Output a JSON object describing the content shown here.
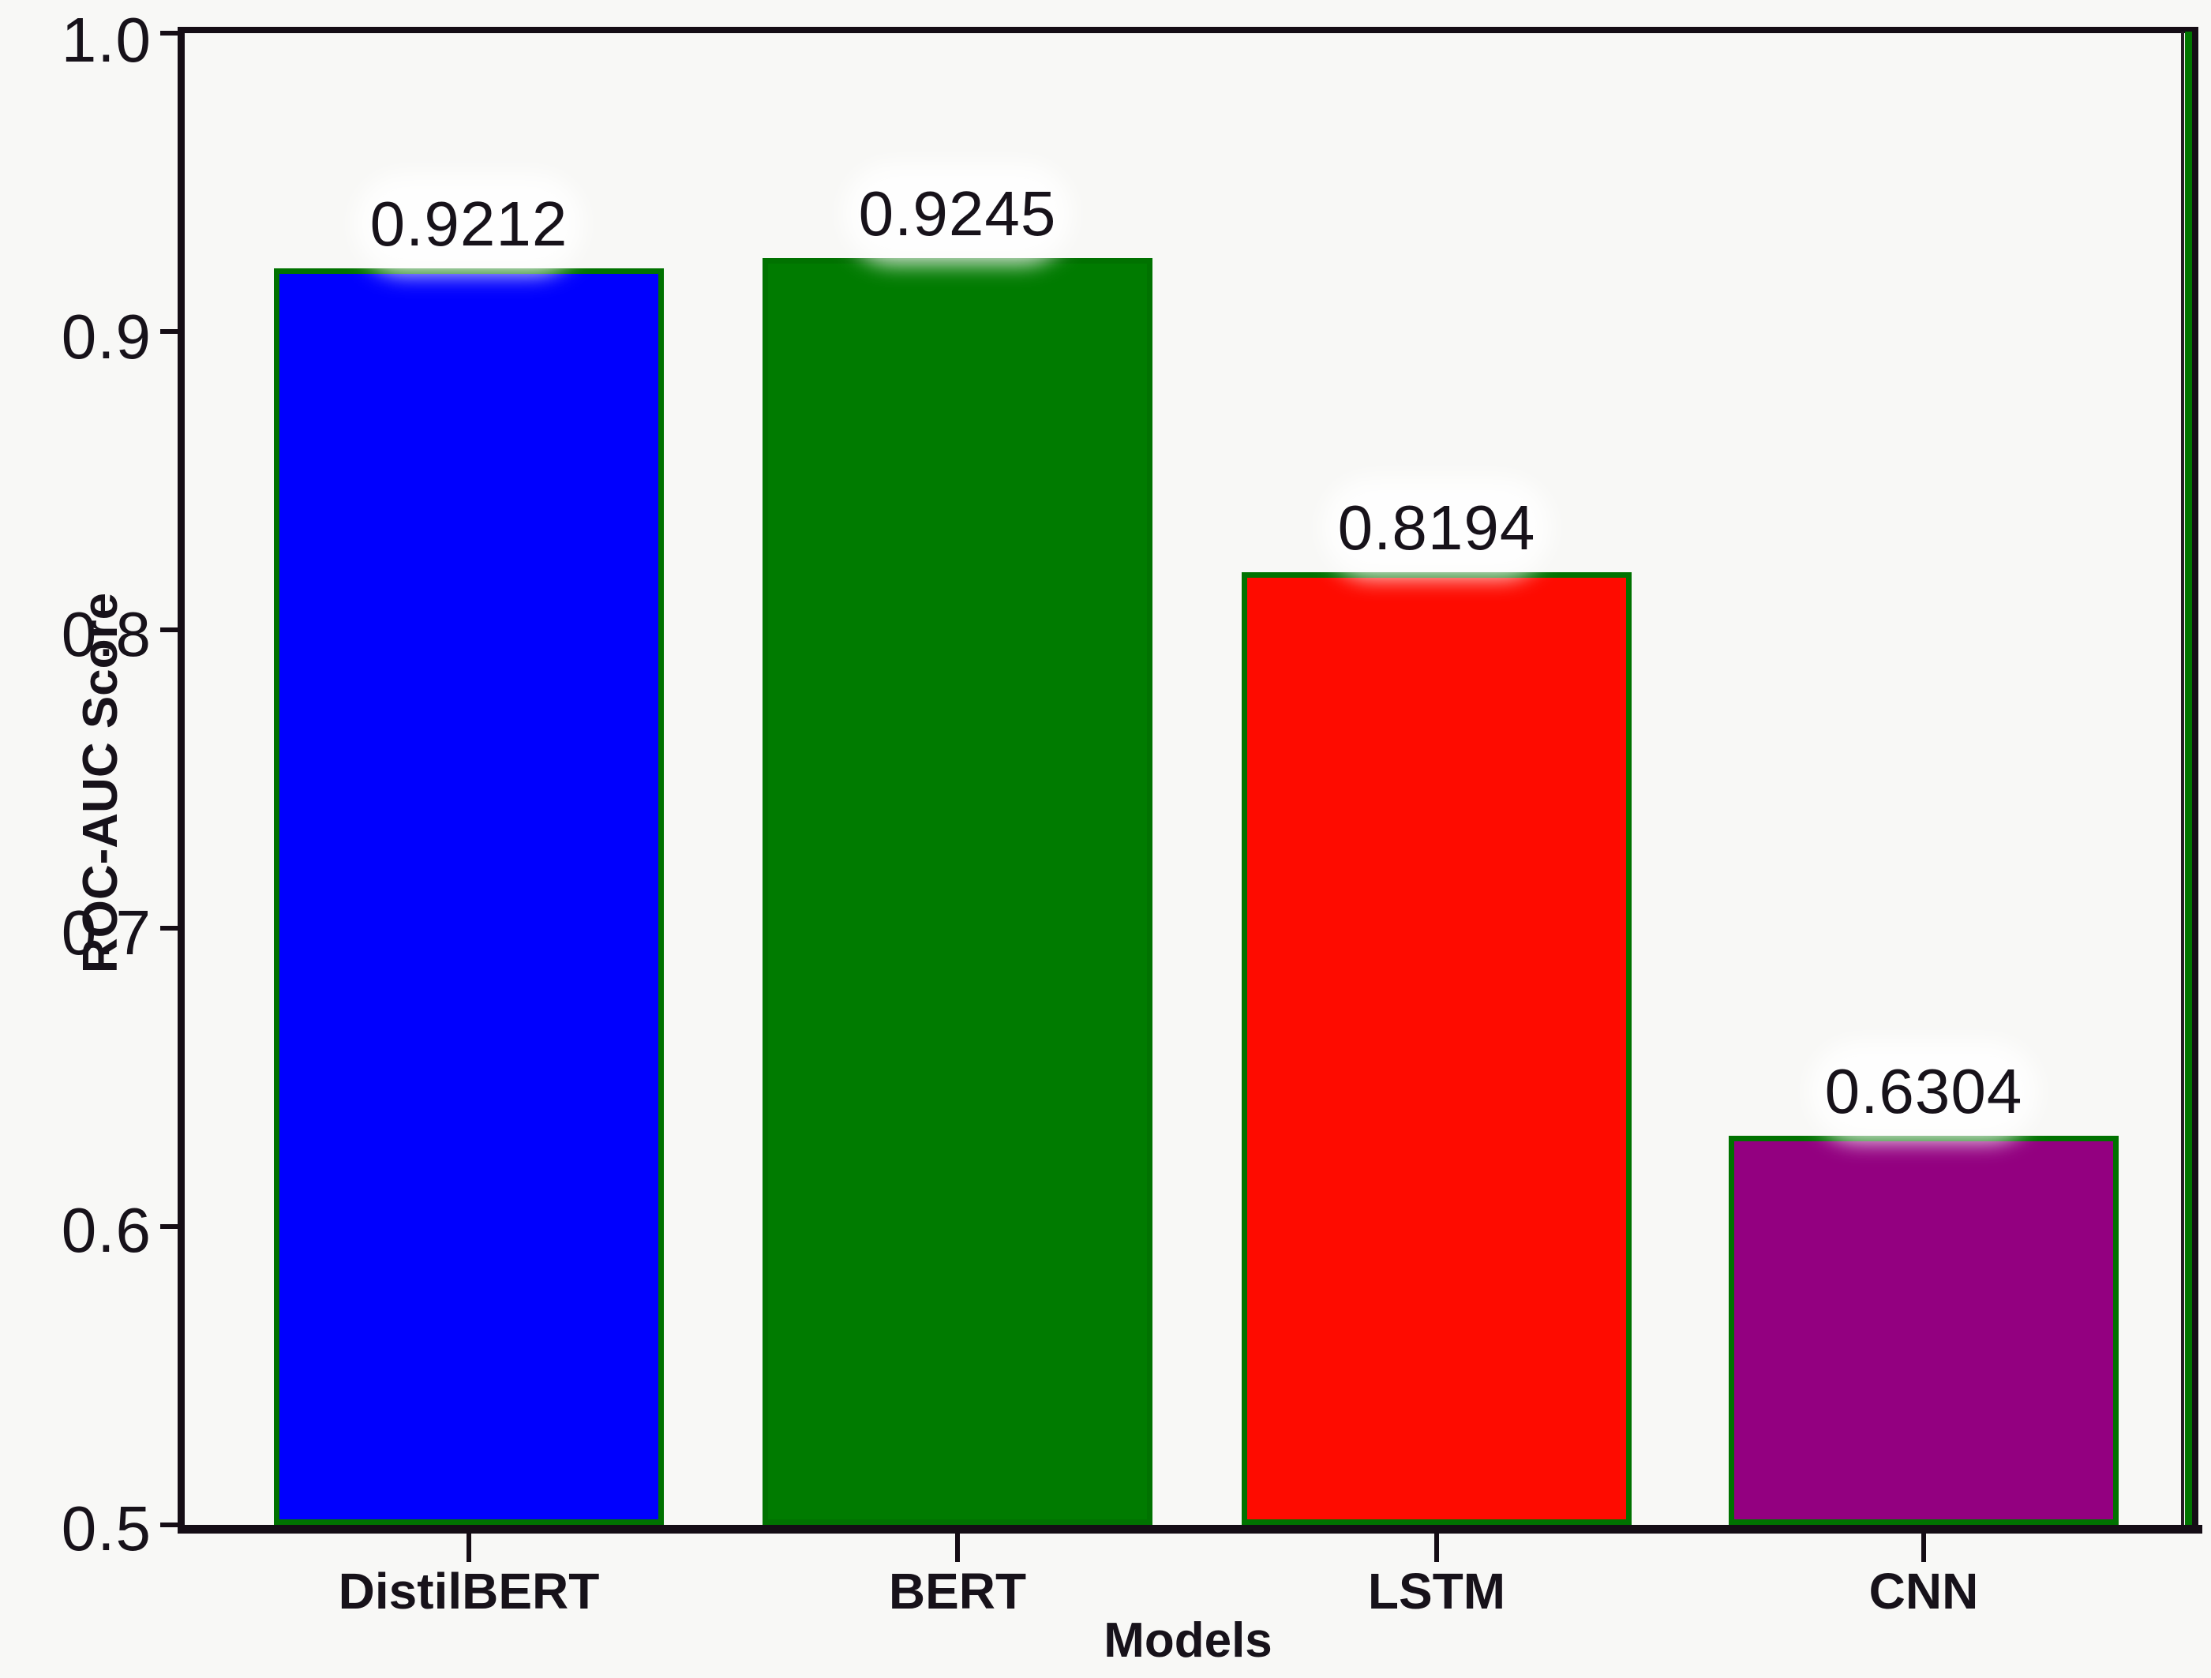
{
  "chart_data": {
    "type": "bar",
    "title": "",
    "xlabel": "Models",
    "ylabel": "ROC-AUC Score",
    "categories": [
      "DistilBERT",
      "BERT",
      "LSTM",
      "CNN"
    ],
    "values": [
      0.9212,
      0.9245,
      0.8194,
      0.6304
    ],
    "value_labels": [
      "0.9212",
      "0.9245",
      "0.8194",
      "0.6304"
    ],
    "bar_colors": [
      "#0000fe",
      "#007b00",
      "#fe0b00",
      "#930080"
    ],
    "bar_edge_color": "#007200",
    "ylim": [
      0.5,
      1.0
    ],
    "ytick_labels": [
      "1.0",
      "0.9",
      "0.8",
      "0.7",
      "0.6",
      "0.5"
    ],
    "yticks": [
      1.0,
      0.9,
      0.8,
      0.7,
      0.6,
      0.5
    ],
    "grid": false,
    "legend_position": "none"
  }
}
